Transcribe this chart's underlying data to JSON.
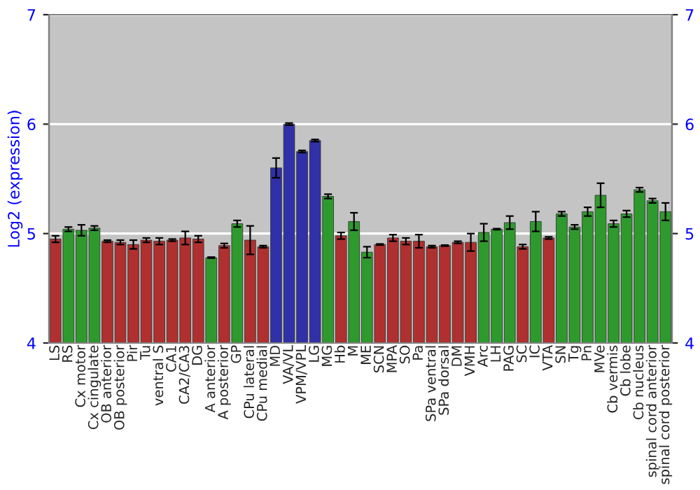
{
  "chart_data": {
    "type": "bar",
    "ylabel": "Log2 (expression)",
    "categories": [
      "LS",
      "RS",
      "Cx motor",
      "Cx cingulate",
      "OB anterior",
      "OB posterior",
      "Pir",
      "Tu",
      "ventral S",
      "CA1",
      "CA2/CA3",
      "DG",
      "A anterior",
      "A posterior",
      "GP",
      "CPu lateral",
      "CPu medial",
      "MD",
      "VA/VL",
      "VPM/VPL",
      "LG",
      "MG",
      "Hb",
      "M",
      "ME",
      "SCN",
      "MPA",
      "SO",
      "Pa",
      "SPa ventral",
      "SPa dorsal",
      "DM",
      "VMH",
      "Arc",
      "LH",
      "PAG",
      "SC",
      "IC",
      "VTA",
      "SN",
      "Tg",
      "Pn",
      "MVe",
      "Cb vermis",
      "Cb lobe",
      "Cb nucleus",
      "spinal cord anterior",
      "spinal cord posterior"
    ],
    "values": [
      4.95,
      5.04,
      5.03,
      5.05,
      4.93,
      4.92,
      4.9,
      4.94,
      4.93,
      4.94,
      4.96,
      4.95,
      4.78,
      4.89,
      5.09,
      4.94,
      4.88,
      5.6,
      6.0,
      5.75,
      5.85,
      5.34,
      4.98,
      5.11,
      4.83,
      4.9,
      4.96,
      4.93,
      4.93,
      4.88,
      4.89,
      4.92,
      4.92,
      5.01,
      5.04,
      5.1,
      4.88,
      5.11,
      4.96,
      5.18,
      5.06,
      5.2,
      5.35,
      5.09,
      5.18,
      5.4,
      5.3,
      5.2
    ],
    "errors": [
      0.03,
      0.02,
      0.05,
      0.02,
      0.01,
      0.02,
      0.04,
      0.02,
      0.03,
      0.01,
      0.06,
      0.03,
      0.005,
      0.02,
      0.03,
      0.13,
      0.01,
      0.09,
      0.01,
      0.01,
      0.01,
      0.02,
      0.03,
      0.08,
      0.05,
      0.005,
      0.03,
      0.03,
      0.06,
      0.01,
      0.005,
      0.01,
      0.08,
      0.08,
      0.005,
      0.06,
      0.02,
      0.09,
      0.01,
      0.02,
      0.02,
      0.04,
      0.11,
      0.03,
      0.03,
      0.02,
      0.02,
      0.08
    ],
    "colors": [
      "#b03030",
      "#2e9a2e",
      "#2e9a2e",
      "#2e9a2e",
      "#b03030",
      "#b03030",
      "#b03030",
      "#b03030",
      "#b03030",
      "#b03030",
      "#b03030",
      "#b03030",
      "#2e9a2e",
      "#b03030",
      "#2e9a2e",
      "#b03030",
      "#b03030",
      "#3030a8",
      "#3030a8",
      "#3030a8",
      "#3030a8",
      "#2e9a2e",
      "#b03030",
      "#2e9a2e",
      "#2e9a2e",
      "#b03030",
      "#b03030",
      "#b03030",
      "#b03030",
      "#b03030",
      "#b03030",
      "#b03030",
      "#b03030",
      "#2e9a2e",
      "#2e9a2e",
      "#2e9a2e",
      "#b03030",
      "#2e9a2e",
      "#b03030",
      "#2e9a2e",
      "#2e9a2e",
      "#2e9a2e",
      "#2e9a2e",
      "#2e9a2e",
      "#2e9a2e",
      "#2e9a2e",
      "#2e9a2e",
      "#2e9a2e"
    ],
    "ylim": [
      4,
      7
    ],
    "yticks": [
      4,
      5,
      6,
      7
    ],
    "y2lim": [
      4,
      7
    ],
    "y2ticks": [
      4,
      5,
      6,
      7
    ],
    "grid": "y",
    "legend": false
  }
}
